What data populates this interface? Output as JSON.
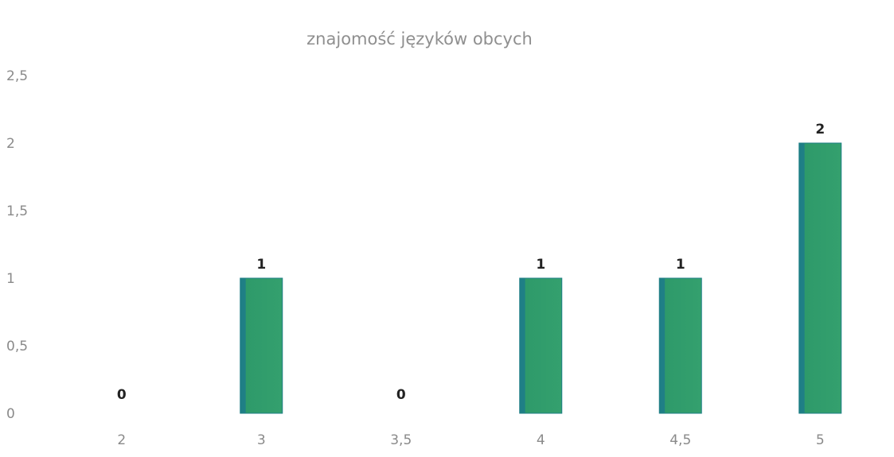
{
  "chart_data": {
    "type": "bar",
    "title": "znajomość języków obcych",
    "xlabel": "",
    "ylabel": "",
    "categories": [
      "2",
      "3",
      "3,5",
      "4",
      "4,5",
      "5"
    ],
    "values": [
      0,
      1,
      0,
      1,
      1,
      2
    ],
    "data_labels": [
      "0",
      "1",
      "0",
      "1",
      "1",
      "2"
    ],
    "ylim": [
      0,
      2.5
    ],
    "y_ticks": [
      0,
      0.5,
      1,
      1.5,
      2,
      2.5
    ],
    "y_tick_labels": [
      "0",
      "0,5",
      "1",
      "1,5",
      "2",
      "2,5"
    ],
    "grid": false,
    "legend": "none",
    "colors": {
      "bar": "#2e9a6a",
      "bar_edge": "#1f7f86",
      "title": "#8f8f8f",
      "axis_text": "#8a8a8a",
      "data_label": "#222222"
    }
  }
}
